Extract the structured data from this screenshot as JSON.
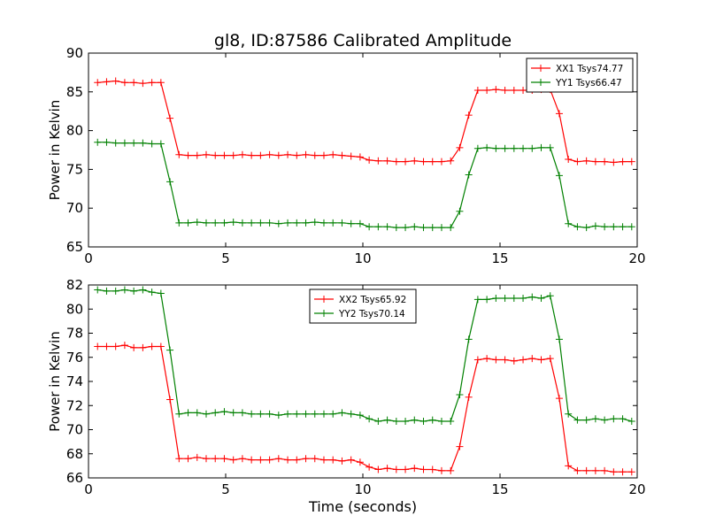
{
  "figure": {
    "title": "gl8, ID:87586 Calibrated Amplitude",
    "xlabel": "Time (seconds)"
  },
  "chart_data": [
    {
      "type": "line",
      "title": "gl8, ID:87586 Calibrated Amplitude",
      "xlabel": "",
      "ylabel": "Power in Kelvin",
      "xlim": [
        0,
        20
      ],
      "ylim": [
        65,
        90
      ],
      "xticks": [
        0,
        5,
        10,
        15,
        20
      ],
      "yticks": [
        65,
        70,
        75,
        80,
        85,
        90
      ],
      "grid": false,
      "legend_position": "top-right",
      "series": [
        {
          "name": "XX1 Tsys74.77",
          "color": "#ff0000",
          "x": [
            0.33,
            0.66,
            0.99,
            1.32,
            1.65,
            1.98,
            2.31,
            2.64,
            2.97,
            3.3,
            3.63,
            3.96,
            4.29,
            4.62,
            4.95,
            5.28,
            5.61,
            5.94,
            6.27,
            6.6,
            6.93,
            7.26,
            7.59,
            7.92,
            8.25,
            8.58,
            8.91,
            9.24,
            9.57,
            9.9,
            10.23,
            10.56,
            10.89,
            11.22,
            11.55,
            11.88,
            12.21,
            12.54,
            12.87,
            13.2,
            13.53,
            13.86,
            14.19,
            14.52,
            14.85,
            15.18,
            15.51,
            15.84,
            16.17,
            16.5,
            16.83,
            17.16,
            17.49,
            17.82,
            18.15,
            18.48,
            18.81,
            19.14,
            19.47,
            19.8
          ],
          "y": [
            86.2,
            86.3,
            86.4,
            86.2,
            86.2,
            86.1,
            86.2,
            86.2,
            81.6,
            76.9,
            76.8,
            76.8,
            76.9,
            76.8,
            76.8,
            76.8,
            76.9,
            76.8,
            76.8,
            76.9,
            76.8,
            76.9,
            76.8,
            76.9,
            76.8,
            76.8,
            76.9,
            76.8,
            76.7,
            76.6,
            76.2,
            76.1,
            76.1,
            76.0,
            76.0,
            76.1,
            76.0,
            76.0,
            76.0,
            76.1,
            77.8,
            82.0,
            85.2,
            85.2,
            85.3,
            85.2,
            85.2,
            85.2,
            85.2,
            85.3,
            85.3,
            82.2,
            76.3,
            76.0,
            76.1,
            76.0,
            76.0,
            75.9,
            76.0,
            76.0
          ]
        },
        {
          "name": "YY1 Tsys66.47",
          "color": "#008000",
          "x": [
            0.33,
            0.66,
            0.99,
            1.32,
            1.65,
            1.98,
            2.31,
            2.64,
            2.97,
            3.3,
            3.63,
            3.96,
            4.29,
            4.62,
            4.95,
            5.28,
            5.61,
            5.94,
            6.27,
            6.6,
            6.93,
            7.26,
            7.59,
            7.92,
            8.25,
            8.58,
            8.91,
            9.24,
            9.57,
            9.9,
            10.23,
            10.56,
            10.89,
            11.22,
            11.55,
            11.88,
            12.21,
            12.54,
            12.87,
            13.2,
            13.53,
            13.86,
            14.19,
            14.52,
            14.85,
            15.18,
            15.51,
            15.84,
            16.17,
            16.5,
            16.83,
            17.16,
            17.49,
            17.82,
            18.15,
            18.48,
            18.81,
            19.14,
            19.47,
            19.8
          ],
          "y": [
            78.5,
            78.5,
            78.4,
            78.4,
            78.4,
            78.4,
            78.3,
            78.3,
            73.4,
            68.1,
            68.1,
            68.2,
            68.1,
            68.1,
            68.1,
            68.2,
            68.1,
            68.1,
            68.1,
            68.1,
            68.0,
            68.1,
            68.1,
            68.1,
            68.2,
            68.1,
            68.1,
            68.1,
            68.0,
            68.0,
            67.6,
            67.6,
            67.6,
            67.5,
            67.5,
            67.6,
            67.5,
            67.5,
            67.5,
            67.5,
            69.6,
            74.3,
            77.7,
            77.8,
            77.7,
            77.7,
            77.7,
            77.7,
            77.7,
            77.8,
            77.8,
            74.2,
            68.0,
            67.6,
            67.5,
            67.7,
            67.6,
            67.6,
            67.6,
            67.6
          ]
        }
      ]
    },
    {
      "type": "line",
      "title": "",
      "xlabel": "Time (seconds)",
      "ylabel": "Power in Kelvin",
      "xlim": [
        0,
        20
      ],
      "ylim": [
        66,
        82
      ],
      "xticks": [
        0,
        5,
        10,
        15,
        20
      ],
      "yticks": [
        66,
        68,
        70,
        72,
        74,
        76,
        78,
        80,
        82
      ],
      "grid": false,
      "legend_position": "top-center",
      "series": [
        {
          "name": "XX2 Tsys65.92",
          "color": "#ff0000",
          "x": [
            0.33,
            0.66,
            0.99,
            1.32,
            1.65,
            1.98,
            2.31,
            2.64,
            2.97,
            3.3,
            3.63,
            3.96,
            4.29,
            4.62,
            4.95,
            5.28,
            5.61,
            5.94,
            6.27,
            6.6,
            6.93,
            7.26,
            7.59,
            7.92,
            8.25,
            8.58,
            8.91,
            9.24,
            9.57,
            9.9,
            10.23,
            10.56,
            10.89,
            11.22,
            11.55,
            11.88,
            12.21,
            12.54,
            12.87,
            13.2,
            13.53,
            13.86,
            14.19,
            14.52,
            14.85,
            15.18,
            15.51,
            15.84,
            16.17,
            16.5,
            16.83,
            17.16,
            17.49,
            17.82,
            18.15,
            18.48,
            18.81,
            19.14,
            19.47,
            19.8
          ],
          "y": [
            76.9,
            76.9,
            76.9,
            77.0,
            76.8,
            76.8,
            76.9,
            76.9,
            72.5,
            67.6,
            67.6,
            67.7,
            67.6,
            67.6,
            67.6,
            67.5,
            67.6,
            67.5,
            67.5,
            67.5,
            67.6,
            67.5,
            67.5,
            67.6,
            67.6,
            67.5,
            67.5,
            67.4,
            67.5,
            67.3,
            66.9,
            66.7,
            66.8,
            66.7,
            66.7,
            66.8,
            66.7,
            66.7,
            66.6,
            66.6,
            68.6,
            72.7,
            75.8,
            75.9,
            75.8,
            75.8,
            75.7,
            75.8,
            75.9,
            75.8,
            75.9,
            72.6,
            67.0,
            66.6,
            66.6,
            66.6,
            66.6,
            66.5,
            66.5,
            66.5
          ]
        },
        {
          "name": "YY2 Tsys70.14",
          "color": "#008000",
          "x": [
            0.33,
            0.66,
            0.99,
            1.32,
            1.65,
            1.98,
            2.31,
            2.64,
            2.97,
            3.3,
            3.63,
            3.96,
            4.29,
            4.62,
            4.95,
            5.28,
            5.61,
            5.94,
            6.27,
            6.6,
            6.93,
            7.26,
            7.59,
            7.92,
            8.25,
            8.58,
            8.91,
            9.24,
            9.57,
            9.9,
            10.23,
            10.56,
            10.89,
            11.22,
            11.55,
            11.88,
            12.21,
            12.54,
            12.87,
            13.2,
            13.53,
            13.86,
            14.19,
            14.52,
            14.85,
            15.18,
            15.51,
            15.84,
            16.17,
            16.5,
            16.83,
            17.16,
            17.49,
            17.82,
            18.15,
            18.48,
            18.81,
            19.14,
            19.47,
            19.8
          ],
          "y": [
            81.6,
            81.5,
            81.5,
            81.6,
            81.5,
            81.6,
            81.4,
            81.3,
            76.6,
            71.3,
            71.4,
            71.4,
            71.3,
            71.4,
            71.5,
            71.4,
            71.4,
            71.3,
            71.3,
            71.3,
            71.2,
            71.3,
            71.3,
            71.3,
            71.3,
            71.3,
            71.3,
            71.4,
            71.3,
            71.2,
            70.9,
            70.7,
            70.8,
            70.7,
            70.7,
            70.8,
            70.7,
            70.8,
            70.7,
            70.7,
            72.9,
            77.5,
            80.8,
            80.8,
            80.9,
            80.9,
            80.9,
            80.9,
            81.0,
            80.9,
            81.1,
            77.5,
            71.3,
            70.8,
            70.8,
            70.9,
            70.8,
            70.9,
            70.9,
            70.7
          ]
        }
      ]
    }
  ]
}
